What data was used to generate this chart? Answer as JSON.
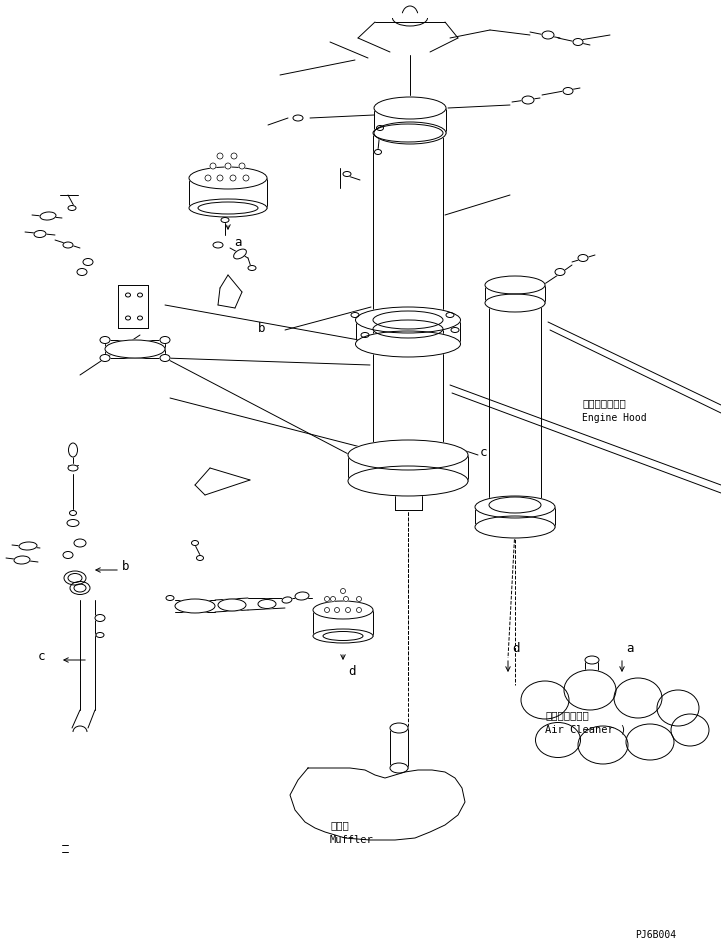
{
  "bg_color": "#ffffff",
  "line_color": "#000000",
  "fig_width": 7.21,
  "fig_height": 9.52,
  "dpi": 100,
  "labels": {
    "engine_hood_jp": "エンジンフード",
    "engine_hood_en": "Engine Hood",
    "air_cleaner_jp": "エアークリーナ",
    "air_cleaner_en": "Air Cleaner )",
    "muffler_jp": "マフラ",
    "muffler_en": "Muffler",
    "part_code": "PJ6B004"
  }
}
